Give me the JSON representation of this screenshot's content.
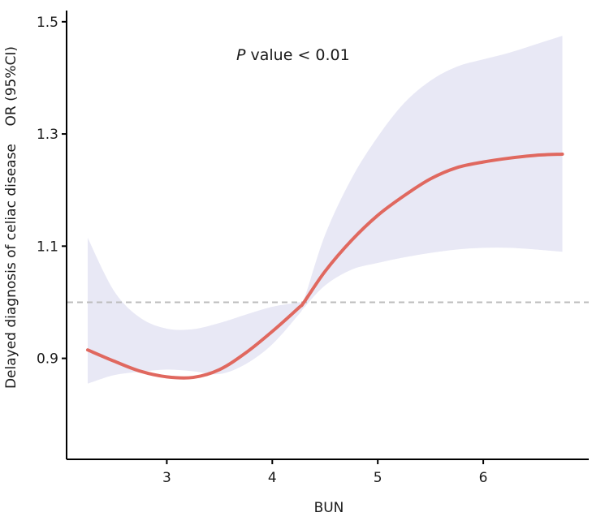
{
  "chart_data": {
    "type": "line",
    "title": "",
    "xlabel": "BUN",
    "ylabel": "Delayed diagnosis of celiac disease    OR (95%CI)",
    "xlim": [
      2.05,
      7.0
    ],
    "ylim": [
      0.72,
      1.52
    ],
    "xticks": [
      3,
      4,
      5,
      6
    ],
    "yticks": [
      0.9,
      1.1,
      1.3,
      1.5
    ],
    "xtick_labels": [
      "3",
      "4",
      "5",
      "6"
    ],
    "ytick_labels": [
      "0.9",
      "1.1",
      "1.3",
      "1.5"
    ],
    "grid": false,
    "reference_line": {
      "y": 1.0,
      "style": "dashed",
      "color": "#bdbdbd"
    },
    "annotation": {
      "italic": "P",
      "text": " value < 0.01"
    },
    "series": [
      {
        "name": "OR",
        "color": "#e0685f",
        "x": [
          2.25,
          2.5,
          2.75,
          3.0,
          3.25,
          3.5,
          3.75,
          4.0,
          4.25,
          4.3,
          4.5,
          4.75,
          5.0,
          5.25,
          5.5,
          5.75,
          6.0,
          6.25,
          6.5,
          6.75
        ],
        "y": [
          0.915,
          0.895,
          0.877,
          0.867,
          0.866,
          0.88,
          0.91,
          0.948,
          0.99,
          1.0,
          1.055,
          1.11,
          1.155,
          1.19,
          1.22,
          1.24,
          1.25,
          1.257,
          1.262,
          1.264
        ],
        "lower": [
          0.855,
          0.87,
          0.876,
          0.88,
          0.877,
          0.872,
          0.89,
          0.925,
          0.978,
          0.99,
          1.03,
          1.058,
          1.07,
          1.08,
          1.088,
          1.094,
          1.097,
          1.097,
          1.094,
          1.09
        ],
        "upper": [
          1.115,
          1.02,
          0.972,
          0.953,
          0.952,
          0.963,
          0.978,
          0.992,
          1.0,
          1.005,
          1.12,
          1.22,
          1.295,
          1.355,
          1.395,
          1.42,
          1.433,
          1.445,
          1.46,
          1.475
        ]
      }
    ]
  }
}
